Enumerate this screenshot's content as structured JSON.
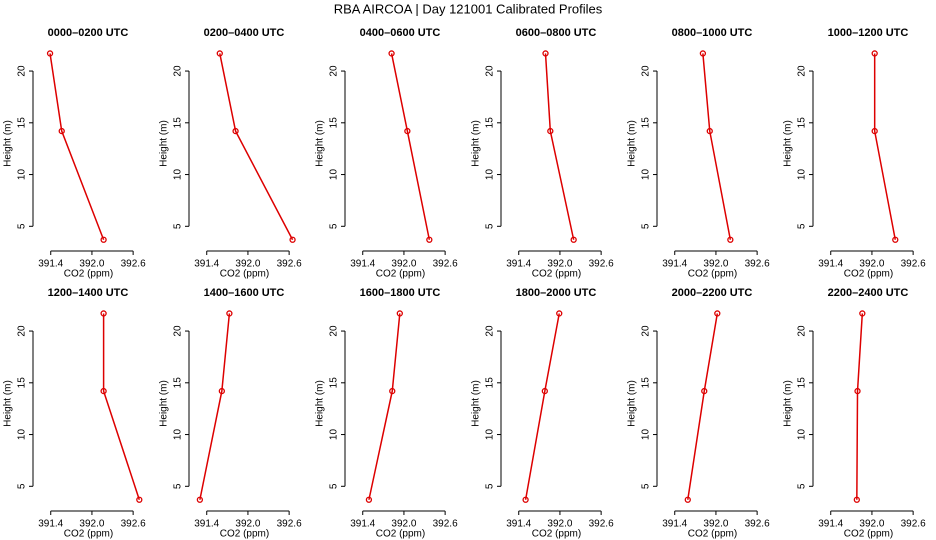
{
  "title": "RBA AIRCOA | Day 121001  Calibrated Profiles",
  "chart_data": [
    {
      "type": "line",
      "title": "0000–0200 UTC",
      "xlabel": "CO2 (ppm)",
      "ylabel": "Height (m)",
      "color": "#dd0000",
      "x": [
        392.17,
        391.56,
        391.39
      ],
      "values": [
        3.7,
        14.2,
        21.7
      ],
      "xlim": [
        391.2,
        392.7
      ],
      "ylim": [
        3,
        23
      ],
      "xticks": [
        391.4,
        {
          "value": 392,
          "label": "392.0"
        },
        392.6
      ],
      "yticks": [
        5,
        10,
        15,
        20
      ]
    },
    {
      "type": "line",
      "title": "0200–0400 UTC",
      "xlabel": "CO2 (ppm)",
      "ylabel": "Height (m)",
      "color": "#dd0000",
      "x": [
        392.65,
        391.82,
        391.59
      ],
      "values": [
        3.7,
        14.2,
        21.7
      ],
      "xlim": [
        391.2,
        392.7
      ],
      "ylim": [
        3,
        23
      ],
      "xticks": [
        391.4,
        {
          "value": 392,
          "label": "392.0"
        },
        392.6
      ],
      "yticks": [
        5,
        10,
        15,
        20
      ]
    },
    {
      "type": "line",
      "title": "0400–0600 UTC",
      "xlabel": "CO2 (ppm)",
      "ylabel": "Height (m)",
      "color": "#dd0000",
      "x": [
        392.37,
        392.05,
        391.82
      ],
      "values": [
        3.7,
        14.2,
        21.7
      ],
      "xlim": [
        391.2,
        392.7
      ],
      "ylim": [
        3,
        23
      ],
      "xticks": [
        391.4,
        {
          "value": 392,
          "label": "392.0"
        },
        392.6
      ],
      "yticks": [
        5,
        10,
        15,
        20
      ]
    },
    {
      "type": "line",
      "title": "0600–0800 UTC",
      "xlabel": "CO2 (ppm)",
      "ylabel": "Height (m)",
      "color": "#dd0000",
      "x": [
        392.2,
        391.86,
        391.79
      ],
      "values": [
        3.7,
        14.2,
        21.7
      ],
      "xlim": [
        391.2,
        392.7
      ],
      "ylim": [
        3,
        23
      ],
      "xticks": [
        391.4,
        {
          "value": 392,
          "label": "392.0"
        },
        392.6
      ],
      "yticks": [
        5,
        10,
        15,
        20
      ]
    },
    {
      "type": "line",
      "title": "0800–1000 UTC",
      "xlabel": "CO2 (ppm)",
      "ylabel": "Height (m)",
      "color": "#dd0000",
      "x": [
        392.21,
        391.91,
        391.81
      ],
      "values": [
        3.7,
        14.2,
        21.7
      ],
      "xlim": [
        391.2,
        392.7
      ],
      "ylim": [
        3,
        23
      ],
      "xticks": [
        391.4,
        {
          "value": 392,
          "label": "392.0"
        },
        392.6
      ],
      "yticks": [
        5,
        10,
        15,
        20
      ]
    },
    {
      "type": "line",
      "title": "1000–1200 UTC",
      "xlabel": "CO2 (ppm)",
      "ylabel": "Height (m)",
      "color": "#dd0000",
      "x": [
        392.34,
        392.04,
        392.04
      ],
      "values": [
        3.7,
        14.2,
        21.7
      ],
      "xlim": [
        391.2,
        392.7
      ],
      "ylim": [
        3,
        23
      ],
      "xticks": [
        391.4,
        {
          "value": 392,
          "label": "392.0"
        },
        392.6
      ],
      "yticks": [
        5,
        10,
        15,
        20
      ]
    },
    {
      "type": "line",
      "title": "1200–1400 UTC",
      "xlabel": "CO2 (ppm)",
      "ylabel": "Height (m)",
      "color": "#dd0000",
      "x": [
        392.69,
        392.17,
        392.17
      ],
      "values": [
        3.7,
        14.2,
        21.7
      ],
      "xlim": [
        391.2,
        392.7
      ],
      "ylim": [
        3,
        23
      ],
      "xticks": [
        391.4,
        {
          "value": 392,
          "label": "392.0"
        },
        392.6
      ],
      "yticks": [
        5,
        10,
        15,
        20
      ]
    },
    {
      "type": "line",
      "title": "1400–1600 UTC",
      "xlabel": "CO2 (ppm)",
      "ylabel": "Height (m)",
      "color": "#dd0000",
      "x": [
        391.3,
        391.62,
        391.73
      ],
      "values": [
        3.7,
        14.2,
        21.7
      ],
      "xlim": [
        391.2,
        392.7
      ],
      "ylim": [
        3,
        23
      ],
      "xticks": [
        391.4,
        {
          "value": 392,
          "label": "392.0"
        },
        392.6
      ],
      "yticks": [
        5,
        10,
        15,
        20
      ]
    },
    {
      "type": "line",
      "title": "1600–1800 UTC",
      "xlabel": "CO2 (ppm)",
      "ylabel": "Height (m)",
      "color": "#dd0000",
      "x": [
        391.49,
        391.83,
        391.94
      ],
      "values": [
        3.7,
        14.2,
        21.7
      ],
      "xlim": [
        391.2,
        392.7
      ],
      "ylim": [
        3,
        23
      ],
      "xticks": [
        391.4,
        {
          "value": 392,
          "label": "392.0"
        },
        392.6
      ],
      "yticks": [
        5,
        10,
        15,
        20
      ]
    },
    {
      "type": "line",
      "title": "1800–2000 UTC",
      "xlabel": "CO2 (ppm)",
      "ylabel": "Height (m)",
      "color": "#dd0000",
      "x": [
        391.5,
        391.78,
        391.99
      ],
      "values": [
        3.7,
        14.2,
        21.7
      ],
      "xlim": [
        391.2,
        392.7
      ],
      "ylim": [
        3,
        23
      ],
      "xticks": [
        391.4,
        {
          "value": 392,
          "label": "392.0"
        },
        392.6
      ],
      "yticks": [
        5,
        10,
        15,
        20
      ]
    },
    {
      "type": "line",
      "title": "2000–2200 UTC",
      "xlabel": "CO2 (ppm)",
      "ylabel": "Height (m)",
      "color": "#dd0000",
      "x": [
        391.59,
        391.83,
        392.02
      ],
      "values": [
        3.7,
        14.2,
        21.7
      ],
      "xlim": [
        391.2,
        392.7
      ],
      "ylim": [
        3,
        23
      ],
      "xticks": [
        391.4,
        {
          "value": 392,
          "label": "392.0"
        },
        392.6
      ],
      "yticks": [
        5,
        10,
        15,
        20
      ]
    },
    {
      "type": "line",
      "title": "2200–2400 UTC",
      "xlabel": "CO2 (ppm)",
      "ylabel": "Height (m)",
      "color": "#dd0000",
      "x": [
        391.78,
        391.79,
        391.86
      ],
      "values": [
        3.7,
        14.2,
        21.7
      ],
      "xlim": [
        391.2,
        392.7
      ],
      "ylim": [
        3,
        23
      ],
      "xticks": [
        391.4,
        {
          "value": 392,
          "label": "392.0"
        },
        392.6
      ],
      "yticks": [
        5,
        10,
        15,
        20
      ]
    }
  ]
}
